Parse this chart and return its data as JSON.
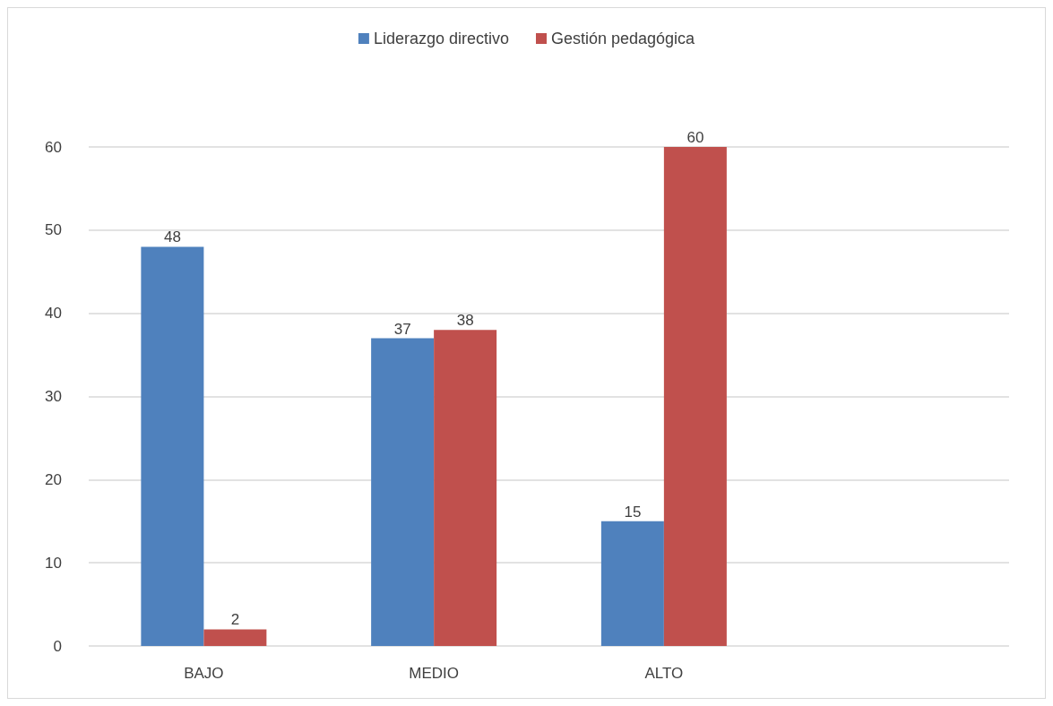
{
  "chart_data": {
    "type": "bar",
    "categories": [
      "BAJO",
      "MEDIO",
      "ALTO",
      null
    ],
    "series": [
      {
        "name": "Liderazgo directivo",
        "color": "#4f81bd",
        "values": [
          48,
          37,
          15,
          null
        ]
      },
      {
        "name": "Gestión pedagógica",
        "color": "#c0504d",
        "values": [
          2,
          38,
          60,
          null
        ]
      }
    ],
    "ylim": [
      0,
      60
    ],
    "yticks": [
      0,
      10,
      20,
      30,
      40,
      50,
      60
    ],
    "grid": "y",
    "legend": "top",
    "data_labels": true
  }
}
